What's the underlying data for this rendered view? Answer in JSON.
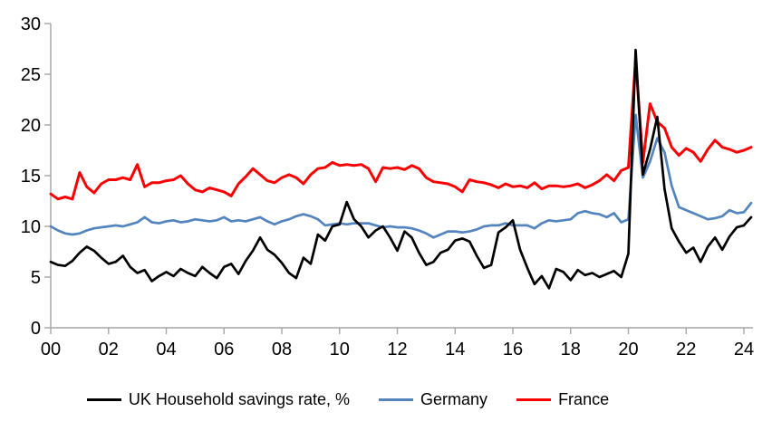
{
  "chart_data": {
    "type": "line",
    "title": "",
    "grid": false,
    "legend_position": "bottom",
    "x_start": 2000.0,
    "x_step_years": 0.25,
    "x_axis": {
      "tick_labels": [
        "00",
        "02",
        "04",
        "06",
        "08",
        "10",
        "12",
        "14",
        "16",
        "18",
        "20",
        "22",
        "24"
      ],
      "tick_interval_years": 2
    },
    "y_axis": {
      "ticks": [
        0,
        5,
        10,
        15,
        20,
        25,
        30
      ],
      "min": 0,
      "max": 30
    },
    "style": {
      "axis_color": "#a6a6a6",
      "tick_text_color": "#000000",
      "background": "#ffffff"
    },
    "draw_order": [
      1,
      2,
      0
    ],
    "series": [
      {
        "id": "uk",
        "name": "UK Household savings rate, %",
        "color": "#000000",
        "width": 2.7,
        "values": [
          6.5,
          6.2,
          6.1,
          6.6,
          7.4,
          8.0,
          7.6,
          6.9,
          6.3,
          6.5,
          7.1,
          6.0,
          5.4,
          5.7,
          4.6,
          5.1,
          5.5,
          5.1,
          5.8,
          5.4,
          5.1,
          6.0,
          5.4,
          4.9,
          6.0,
          6.3,
          5.3,
          6.6,
          7.6,
          8.9,
          7.7,
          7.2,
          6.4,
          5.4,
          4.9,
          6.9,
          6.3,
          9.2,
          8.6,
          10.0,
          10.2,
          12.4,
          10.7,
          10.0,
          8.9,
          9.6,
          10.0,
          8.9,
          7.6,
          9.5,
          8.9,
          7.4,
          6.2,
          6.5,
          7.4,
          7.7,
          8.6,
          8.8,
          8.5,
          7.1,
          5.9,
          6.2,
          9.4,
          9.9,
          10.6,
          7.7,
          5.9,
          4.3,
          5.1,
          3.9,
          5.8,
          5.5,
          4.7,
          5.7,
          5.2,
          5.4,
          5.0,
          5.3,
          5.6,
          5.0,
          7.3,
          27.4,
          15.1,
          17.6,
          20.8,
          13.7,
          9.8,
          8.5,
          7.4,
          7.9,
          6.5,
          8.0,
          8.9,
          7.7,
          9.0,
          9.9,
          10.1,
          10.9
        ]
      },
      {
        "id": "germany",
        "name": "Germany",
        "color": "#5384be",
        "width": 2.7,
        "values": [
          10.0,
          9.6,
          9.3,
          9.2,
          9.3,
          9.6,
          9.8,
          9.9,
          10.0,
          10.1,
          10.0,
          10.2,
          10.4,
          10.9,
          10.4,
          10.3,
          10.5,
          10.6,
          10.4,
          10.5,
          10.7,
          10.6,
          10.5,
          10.6,
          10.9,
          10.5,
          10.6,
          10.5,
          10.7,
          10.9,
          10.5,
          10.2,
          10.5,
          10.7,
          11.0,
          11.2,
          11.0,
          10.7,
          10.1,
          10.2,
          10.3,
          10.2,
          10.3,
          10.3,
          10.3,
          10.1,
          9.9,
          10.0,
          9.9,
          9.9,
          9.8,
          9.6,
          9.3,
          8.9,
          9.2,
          9.5,
          9.5,
          9.4,
          9.5,
          9.7,
          10.0,
          10.1,
          10.1,
          10.3,
          10.1,
          10.1,
          10.1,
          9.8,
          10.3,
          10.6,
          10.5,
          10.6,
          10.7,
          11.3,
          11.5,
          11.3,
          11.2,
          10.9,
          11.3,
          10.4,
          10.7,
          21.0,
          14.8,
          16.4,
          18.7,
          17.3,
          14.0,
          11.9,
          11.6,
          11.3,
          11.0,
          10.7,
          10.8,
          11.0,
          11.6,
          11.3,
          11.4,
          12.3
        ]
      },
      {
        "id": "france",
        "name": "France",
        "color": "#fa0000",
        "width": 3.0,
        "values": [
          13.2,
          12.7,
          12.9,
          12.7,
          15.3,
          13.9,
          13.3,
          14.2,
          14.6,
          14.6,
          14.8,
          14.6,
          16.1,
          13.9,
          14.3,
          14.3,
          14.5,
          14.6,
          15.0,
          14.2,
          13.6,
          13.4,
          13.8,
          13.6,
          13.4,
          13.0,
          14.2,
          14.9,
          15.7,
          15.1,
          14.5,
          14.3,
          14.8,
          15.1,
          14.8,
          14.2,
          15.1,
          15.7,
          15.8,
          16.3,
          16.0,
          16.1,
          16.0,
          16.1,
          15.7,
          14.4,
          15.8,
          15.7,
          15.8,
          15.6,
          16.0,
          15.7,
          14.8,
          14.4,
          14.3,
          14.2,
          13.9,
          13.4,
          14.6,
          14.4,
          14.3,
          14.1,
          13.8,
          14.2,
          13.9,
          14.0,
          13.8,
          14.3,
          13.7,
          14.0,
          14.0,
          13.9,
          14.0,
          14.2,
          13.8,
          14.1,
          14.5,
          15.1,
          14.5,
          15.5,
          15.8,
          26.5,
          16.3,
          22.1,
          20.3,
          19.7,
          17.8,
          17.0,
          17.7,
          17.3,
          16.4,
          17.6,
          18.5,
          17.8,
          17.6,
          17.3,
          17.5,
          17.8
        ]
      }
    ]
  }
}
